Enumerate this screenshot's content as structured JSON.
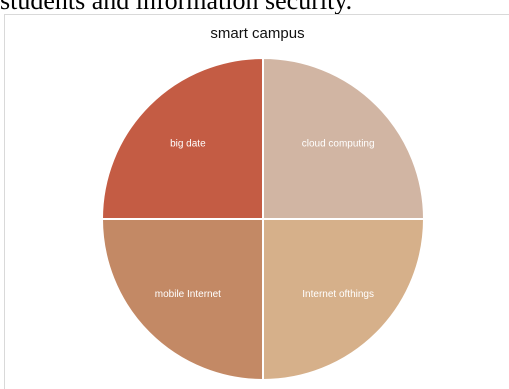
{
  "page": {
    "top_text": "students and information security."
  },
  "chart_data": {
    "type": "pie",
    "title": "smart campus",
    "slices": [
      {
        "label": "big date",
        "value": 25,
        "color": "#c45c44"
      },
      {
        "label": "cloud computing",
        "value": 25,
        "color": "#d1b5a3"
      },
      {
        "label": "Internet ofthings",
        "value": 25,
        "color": "#d6b08a"
      },
      {
        "label": "mobile Internet",
        "value": 25,
        "color": "#c38965"
      }
    ],
    "start": "top",
    "direction": "clockwise",
    "slice_border_color": "#ffffff"
  }
}
